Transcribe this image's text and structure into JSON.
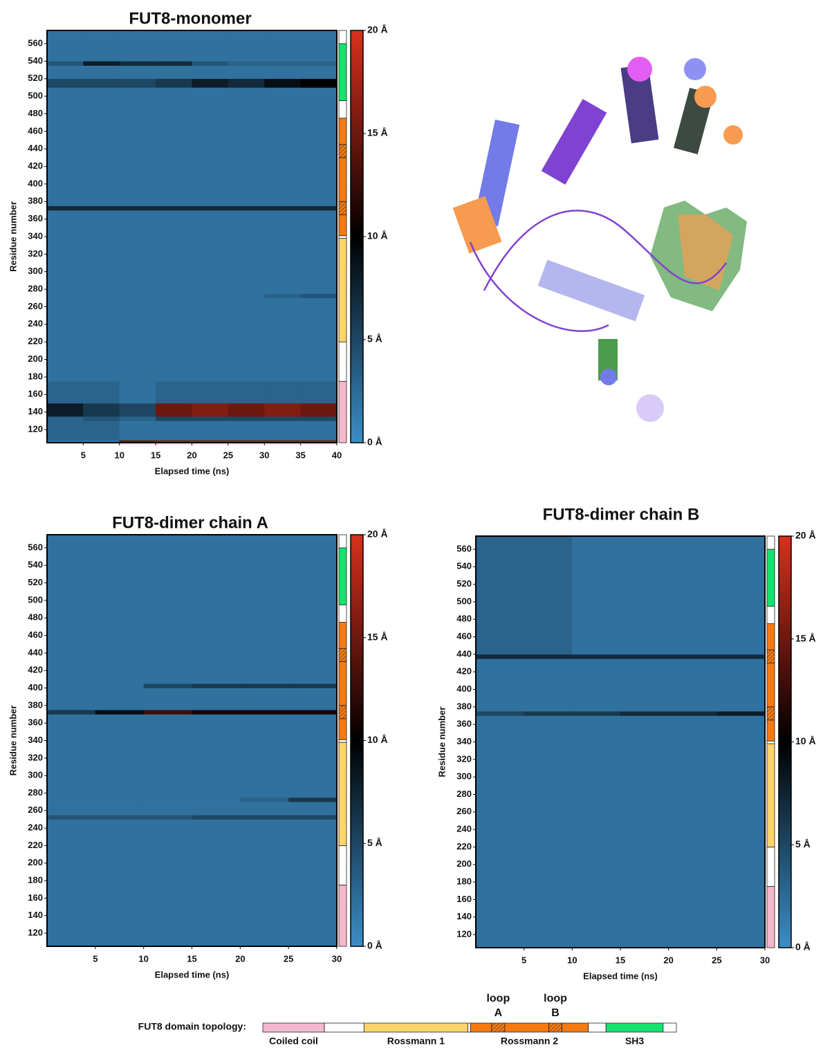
{
  "chart_data": [
    {
      "type": "heatmap",
      "title": "FUT8-monomer",
      "x_label": "Elapsed time (ns)",
      "y_label": "Residue number",
      "x_edges": [
        0,
        5,
        10,
        15,
        20,
        25,
        30,
        35,
        40
      ],
      "y_edges": [
        105,
        108,
        130,
        135,
        150,
        175,
        270,
        275,
        370,
        375,
        510,
        520,
        535,
        540,
        575
      ],
      "z": [
        [
          2,
          2,
          15,
          16,
          16,
          16,
          16,
          16
        ],
        [
          3,
          3,
          2,
          2,
          2,
          2,
          2,
          2
        ],
        [
          3,
          4,
          3,
          5,
          5,
          5,
          5,
          5
        ],
        [
          8,
          6,
          5,
          15,
          16,
          15,
          16,
          15
        ],
        [
          3,
          3,
          2,
          3,
          3,
          3,
          3,
          3
        ],
        [
          2,
          2,
          2,
          2,
          2,
          2,
          2,
          2
        ],
        [
          2,
          2,
          2,
          2,
          2,
          2,
          3,
          4
        ],
        [
          2,
          2,
          2,
          2,
          2,
          2,
          2,
          2
        ],
        [
          7,
          7,
          7,
          7,
          7,
          7,
          7,
          7
        ],
        [
          2,
          2,
          2,
          2,
          2,
          2,
          2,
          2
        ],
        [
          5,
          5,
          5,
          6,
          8,
          7,
          9,
          10
        ],
        [
          2,
          2,
          2,
          2,
          2,
          2,
          2,
          2
        ],
        [
          4,
          8,
          7,
          7,
          4,
          3,
          3,
          3
        ],
        [
          2,
          2,
          2,
          2,
          2,
          2,
          2,
          2
        ]
      ],
      "xlim": [
        0,
        40
      ],
      "xticks": [
        5,
        10,
        15,
        20,
        25,
        30,
        35,
        40
      ],
      "ylim": [
        105,
        575
      ],
      "yticks": [
        120,
        140,
        160,
        180,
        200,
        220,
        240,
        260,
        280,
        300,
        320,
        340,
        360,
        380,
        400,
        420,
        440,
        460,
        480,
        500,
        520,
        540,
        560
      ],
      "zlim": [
        0,
        20
      ],
      "zticks": [
        {
          "value": 0,
          "label": "0 Å"
        },
        {
          "value": 5,
          "label": "5 Å"
        },
        {
          "value": 10,
          "label": "10 Å"
        },
        {
          "value": 15,
          "label": "15 Å"
        },
        {
          "value": 20,
          "label": "20 Å"
        }
      ],
      "colorscale": [
        "#3c8dc6",
        "#000000",
        "#d9301e"
      ]
    },
    {
      "type": "heatmap",
      "title": "FUT8-dimer chain A",
      "x_label": "Elapsed time (ns)",
      "y_label": "Residue number",
      "x_edges": [
        0,
        5,
        10,
        15,
        20,
        25,
        30
      ],
      "y_edges": [
        105,
        250,
        255,
        270,
        275,
        370,
        375,
        400,
        405,
        575
      ],
      "z": [
        [
          2,
          2,
          2,
          2,
          2,
          2
        ],
        [
          4,
          4,
          4,
          5,
          5,
          5
        ],
        [
          2,
          2,
          2,
          2,
          2,
          2
        ],
        [
          2,
          2,
          2,
          2,
          3,
          6
        ],
        [
          2,
          2,
          2,
          2,
          2,
          2
        ],
        [
          6,
          9,
          13,
          11,
          11,
          11
        ],
        [
          2,
          2,
          2,
          2,
          2,
          2
        ],
        [
          2,
          2,
          5,
          6,
          6,
          6
        ],
        [
          2,
          2,
          2,
          2,
          2,
          2
        ]
      ],
      "xlim": [
        0,
        30
      ],
      "xticks": [
        5,
        10,
        15,
        20,
        25,
        30
      ],
      "ylim": [
        105,
        575
      ],
      "yticks": [
        120,
        140,
        160,
        180,
        200,
        220,
        240,
        260,
        280,
        300,
        320,
        340,
        360,
        380,
        400,
        420,
        440,
        460,
        480,
        500,
        520,
        540,
        560
      ],
      "zlim": [
        0,
        20
      ],
      "zticks": [
        {
          "value": 0,
          "label": "0 Å"
        },
        {
          "value": 5,
          "label": "5 Å"
        },
        {
          "value": 10,
          "label": "10 Å"
        },
        {
          "value": 15,
          "label": "15 Å"
        },
        {
          "value": 20,
          "label": "20 Å"
        }
      ],
      "colorscale": [
        "#3c8dc6",
        "#000000",
        "#d9301e"
      ]
    },
    {
      "type": "heatmap",
      "title": "FUT8-dimer chain B",
      "x_label": "Elapsed time (ns)",
      "y_label": "Residue number",
      "x_edges": [
        0,
        5,
        10,
        15,
        20,
        25,
        30
      ],
      "y_edges": [
        105,
        370,
        375,
        435,
        440,
        575
      ],
      "z": [
        [
          2,
          2,
          2,
          2,
          2,
          2
        ],
        [
          5,
          6,
          6,
          7,
          7,
          8
        ],
        [
          2,
          2,
          2,
          2,
          2,
          2
        ],
        [
          7,
          7,
          7,
          7,
          7,
          7
        ],
        [
          3,
          3,
          2,
          2,
          2,
          2
        ]
      ],
      "xlim": [
        0,
        30
      ],
      "xticks": [
        5,
        10,
        15,
        20,
        25,
        30
      ],
      "ylim": [
        105,
        575
      ],
      "yticks": [
        120,
        140,
        160,
        180,
        200,
        220,
        240,
        260,
        280,
        300,
        320,
        340,
        360,
        380,
        400,
        420,
        440,
        460,
        480,
        500,
        520,
        540,
        560
      ],
      "zlim": [
        0,
        20
      ],
      "zticks": [
        {
          "value": 0,
          "label": "0 Å"
        },
        {
          "value": 5,
          "label": "5 Å"
        },
        {
          "value": 10,
          "label": "10 Å"
        },
        {
          "value": 15,
          "label": "15 Å"
        },
        {
          "value": 20,
          "label": "20 Å"
        }
      ],
      "colorscale": [
        "#3c8dc6",
        "#000000",
        "#d9301e"
      ]
    }
  ],
  "topology": {
    "title": "FUT8 domain topology:",
    "segments": [
      {
        "start": 105,
        "end": 175,
        "color": "#f5b8cf"
      },
      {
        "start": 175,
        "end": 220,
        "color": "#ffffff"
      },
      {
        "start": 220,
        "end": 338,
        "color": "#fdd46a"
      },
      {
        "start": 338,
        "end": 341,
        "color": "#ffffff"
      },
      {
        "start": 341,
        "end": 365,
        "color": "#f57a12"
      },
      {
        "start": 365,
        "end": 380,
        "color": "#f57a12",
        "hatch": true
      },
      {
        "start": 380,
        "end": 430,
        "color": "#f57a12"
      },
      {
        "start": 430,
        "end": 445,
        "color": "#f57a12",
        "hatch": true
      },
      {
        "start": 445,
        "end": 475,
        "color": "#f57a12"
      },
      {
        "start": 475,
        "end": 495,
        "color": "#ffffff"
      },
      {
        "start": 495,
        "end": 560,
        "color": "#12e46e"
      },
      {
        "start": 560,
        "end": 575,
        "color": "#ffffff"
      }
    ],
    "domains": [
      {
        "label": "Coiled coil",
        "start": 105,
        "end": 175
      },
      {
        "label": "Rossmann 1",
        "start": 220,
        "end": 338
      },
      {
        "label": "Rossmann 2",
        "start": 341,
        "end": 475
      },
      {
        "label": "SH3",
        "start": 495,
        "end": 560
      }
    ],
    "loops": [
      {
        "label": [
          "loop",
          "A"
        ],
        "start": 365,
        "end": 380
      },
      {
        "label": [
          "loop",
          "B"
        ],
        "start": 430,
        "end": 445
      }
    ]
  }
}
